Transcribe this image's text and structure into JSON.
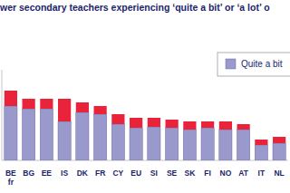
{
  "chart_data": {
    "type": "bar",
    "stacked": true,
    "title": "wer secondary teachers experiencing ‘quite a bit’ or ‘a lot’ o",
    "categories": [
      "BE fr",
      "BG",
      "EE",
      "IS",
      "DK",
      "FR",
      "CY",
      "EU",
      "SI",
      "SE",
      "SK",
      "FI",
      "NO",
      "AT",
      "IT",
      "NL"
    ],
    "series": [
      {
        "name": "Quite a bit",
        "color": "#9999cc",
        "values": [
          60,
          57,
          57,
          43,
          53,
          51,
          40,
          36,
          37,
          36,
          34,
          36,
          34,
          34,
          17,
          19
        ]
      },
      {
        "color": "#e8233a",
        "values": [
          17,
          11,
          11,
          25,
          11,
          9,
          11,
          11,
          10,
          9,
          9,
          7,
          9,
          6,
          6,
          7
        ]
      }
    ],
    "ylim": [
      0,
      100
    ],
    "tick_labels": "x",
    "legend": "top-right"
  }
}
